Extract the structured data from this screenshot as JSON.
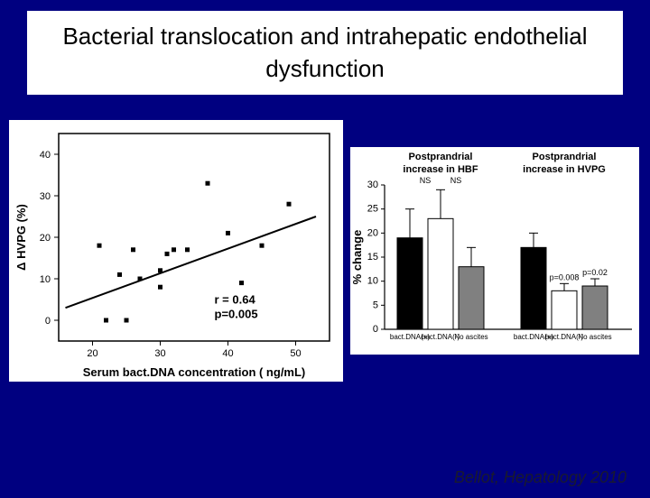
{
  "title": "Bacterial translocation and intrahepatic endothelial dysfunction",
  "citation": "Bellot, Hepatology 2010",
  "scatter": {
    "type": "scatter",
    "xlabel": "Serum bact.DNA concentration ( ng/mL)",
    "ylabel": "Δ HVPG (%)",
    "xlim": [
      15,
      55
    ],
    "ylim": [
      -5,
      45
    ],
    "xticks": [
      20,
      30,
      40,
      50
    ],
    "yticks": [
      0,
      10,
      20,
      30,
      40
    ],
    "points": [
      [
        21,
        18
      ],
      [
        22,
        0
      ],
      [
        24,
        11
      ],
      [
        25,
        0
      ],
      [
        26,
        17
      ],
      [
        27,
        10
      ],
      [
        30,
        12
      ],
      [
        30,
        8
      ],
      [
        31,
        16
      ],
      [
        32,
        17
      ],
      [
        34,
        17
      ],
      [
        37,
        33
      ],
      [
        40,
        21
      ],
      [
        42,
        9
      ],
      [
        45,
        18
      ],
      [
        49,
        28
      ]
    ],
    "fit_line": {
      "x1": 16,
      "y1": 3,
      "x2": 53,
      "y2": 25
    },
    "annotation_r": "r = 0.64",
    "annotation_p": "p=0.005",
    "background_color": "#ffffff",
    "point_color": "#000000",
    "line_color": "#000000"
  },
  "bars": {
    "type": "bar",
    "ylabel": "% change",
    "ylim": [
      0,
      30
    ],
    "yticks": [
      0,
      5,
      10,
      15,
      20,
      25,
      30
    ],
    "group1": {
      "title1": "Postprandrial",
      "title2": "increase in HBF",
      "sig_labels": [
        "NS",
        "NS"
      ],
      "bars": [
        {
          "label": "bact.DNA(+)",
          "value": 19,
          "err": 6,
          "color": "#000000"
        },
        {
          "label": "bact.DNA(-)",
          "value": 23,
          "err": 6,
          "color": "#ffffff"
        },
        {
          "label": "No ascites",
          "value": 13,
          "err": 4,
          "color": "#808080"
        }
      ]
    },
    "group2": {
      "title1": "Postprandrial",
      "title2": "increase in HVPG",
      "p_labels": [
        "p=0.008",
        "p=0.02"
      ],
      "bars": [
        {
          "label": "bact.DNA(+)",
          "value": 17,
          "err": 3,
          "color": "#000000"
        },
        {
          "label": "bact.DNA(-)",
          "value": 8,
          "err": 1.5,
          "color": "#ffffff"
        },
        {
          "label": "No ascites",
          "value": 9,
          "err": 1.5,
          "color": "#808080"
        }
      ]
    },
    "background_color": "#ffffff",
    "bar_stroke": "#000000"
  }
}
